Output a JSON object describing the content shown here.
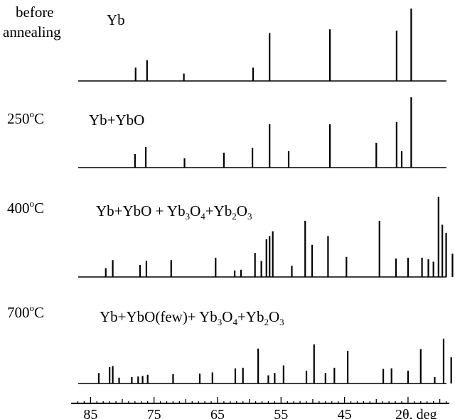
{
  "chart_data": {
    "type": "bar",
    "title": "",
    "xlabel": "2θ, deg",
    "ylabel": "",
    "x_reversed": true,
    "xlim": [
      87.5,
      28.5
    ],
    "x_ticks": [
      85,
      75,
      65,
      55,
      45
    ],
    "x_tick_labels": [
      "85",
      "75",
      "65",
      "55",
      "45"
    ],
    "grid": false,
    "panels": [
      {
        "temp": {
          "main": "before",
          "sub": "annealing"
        },
        "composition": [
          {
            "t": "Yb"
          }
        ],
        "peaks": [
          {
            "x": 77.9,
            "h": 0.18
          },
          {
            "x": 76.1,
            "h": 0.28
          },
          {
            "x": 70.3,
            "h": 0.1
          },
          {
            "x": 59.4,
            "h": 0.18
          },
          {
            "x": 56.8,
            "h": 0.65
          },
          {
            "x": 47.3,
            "h": 0.7
          },
          {
            "x": 36.8,
            "h": 0.68
          },
          {
            "x": 34.5,
            "h": 0.98
          }
        ]
      },
      {
        "temp": {
          "main": "250",
          "sup": "o",
          "tail": "C"
        },
        "composition": [
          {
            "t": "Yb+YbO"
          }
        ],
        "peaks": [
          {
            "x": 78.0,
            "h": 0.19
          },
          {
            "x": 76.3,
            "h": 0.29
          },
          {
            "x": 70.2,
            "h": 0.13
          },
          {
            "x": 64.0,
            "h": 0.21
          },
          {
            "x": 59.5,
            "h": 0.28
          },
          {
            "x": 56.8,
            "h": 0.61
          },
          {
            "x": 53.8,
            "h": 0.23
          },
          {
            "x": 47.3,
            "h": 0.61
          },
          {
            "x": 40.0,
            "h": 0.35
          },
          {
            "x": 36.8,
            "h": 0.64
          },
          {
            "x": 36.0,
            "h": 0.23
          },
          {
            "x": 34.5,
            "h": 0.99
          }
        ]
      },
      {
        "temp": {
          "main": "400",
          "sup": "o",
          "tail": "C"
        },
        "composition": [
          {
            "t": "Yb+YbO + Yb"
          },
          {
            "sub": "3"
          },
          {
            "t": "O"
          },
          {
            "sub": "4"
          },
          {
            "t": "+Yb"
          },
          {
            "sub": "2"
          },
          {
            "t": "O"
          },
          {
            "sub": "3"
          }
        ],
        "peaks": [
          {
            "x": 82.6,
            "h": 0.11
          },
          {
            "x": 81.5,
            "h": 0.21
          },
          {
            "x": 77.2,
            "h": 0.15
          },
          {
            "x": 76.2,
            "h": 0.2
          },
          {
            "x": 72.3,
            "h": 0.21
          },
          {
            "x": 65.3,
            "h": 0.24
          },
          {
            "x": 62.3,
            "h": 0.08
          },
          {
            "x": 61.3,
            "h": 0.09
          },
          {
            "x": 59.1,
            "h": 0.3
          },
          {
            "x": 58.1,
            "h": 0.2
          },
          {
            "x": 57.3,
            "h": 0.47
          },
          {
            "x": 56.8,
            "h": 0.51
          },
          {
            "x": 56.3,
            "h": 0.57
          },
          {
            "x": 53.3,
            "h": 0.14
          },
          {
            "x": 51.2,
            "h": 0.7
          },
          {
            "x": 50.1,
            "h": 0.4
          },
          {
            "x": 47.6,
            "h": 0.51
          },
          {
            "x": 44.7,
            "h": 0.25
          },
          {
            "x": 39.5,
            "h": 0.7
          },
          {
            "x": 36.9,
            "h": 0.23
          },
          {
            "x": 35.0,
            "h": 0.24
          },
          {
            "x": 32.8,
            "h": 0.24
          },
          {
            "x": 31.8,
            "h": 0.22
          },
          {
            "x": 31.0,
            "h": 0.19
          },
          {
            "x": 30.2,
            "h": 1.0
          },
          {
            "x": 29.6,
            "h": 0.65
          },
          {
            "x": 29.0,
            "h": 0.55
          },
          {
            "x": 28.0,
            "h": 0.29
          }
        ]
      },
      {
        "temp": {
          "main": "700",
          "sup": "o",
          "tail": "C"
        },
        "composition": [
          {
            "t": "Yb+YbO(few)+ Yb"
          },
          {
            "sub": "3"
          },
          {
            "t": "O"
          },
          {
            "sub": "4"
          },
          {
            "t": "+Yb"
          },
          {
            "sub": "2"
          },
          {
            "t": "O"
          },
          {
            "sub": "3"
          }
        ],
        "peaks": [
          {
            "x": 83.7,
            "h": 0.18
          },
          {
            "x": 82.0,
            "h": 0.28
          },
          {
            "x": 81.5,
            "h": 0.3
          },
          {
            "x": 80.5,
            "h": 0.1
          },
          {
            "x": 78.5,
            "h": 0.11
          },
          {
            "x": 77.5,
            "h": 0.12
          },
          {
            "x": 76.8,
            "h": 0.13
          },
          {
            "x": 76.0,
            "h": 0.15
          },
          {
            "x": 72.0,
            "h": 0.16
          },
          {
            "x": 67.8,
            "h": 0.17
          },
          {
            "x": 65.8,
            "h": 0.19
          },
          {
            "x": 62.2,
            "h": 0.26
          },
          {
            "x": 61.0,
            "h": 0.27
          },
          {
            "x": 58.6,
            "h": 0.6
          },
          {
            "x": 57.0,
            "h": 0.14
          },
          {
            "x": 56.0,
            "h": 0.18
          },
          {
            "x": 54.6,
            "h": 0.31
          },
          {
            "x": 51.0,
            "h": 0.22
          },
          {
            "x": 49.8,
            "h": 0.67
          },
          {
            "x": 48.0,
            "h": 0.18
          },
          {
            "x": 46.6,
            "h": 0.27
          },
          {
            "x": 44.5,
            "h": 0.56
          },
          {
            "x": 38.9,
            "h": 0.25
          },
          {
            "x": 37.6,
            "h": 0.26
          },
          {
            "x": 35.0,
            "h": 0.22
          },
          {
            "x": 33.0,
            "h": 0.59
          },
          {
            "x": 30.8,
            "h": 0.11
          },
          {
            "x": 29.4,
            "h": 0.77
          },
          {
            "x": 28.2,
            "h": 0.45
          },
          {
            "x": 27.4,
            "h": 0.13
          }
        ]
      }
    ]
  }
}
